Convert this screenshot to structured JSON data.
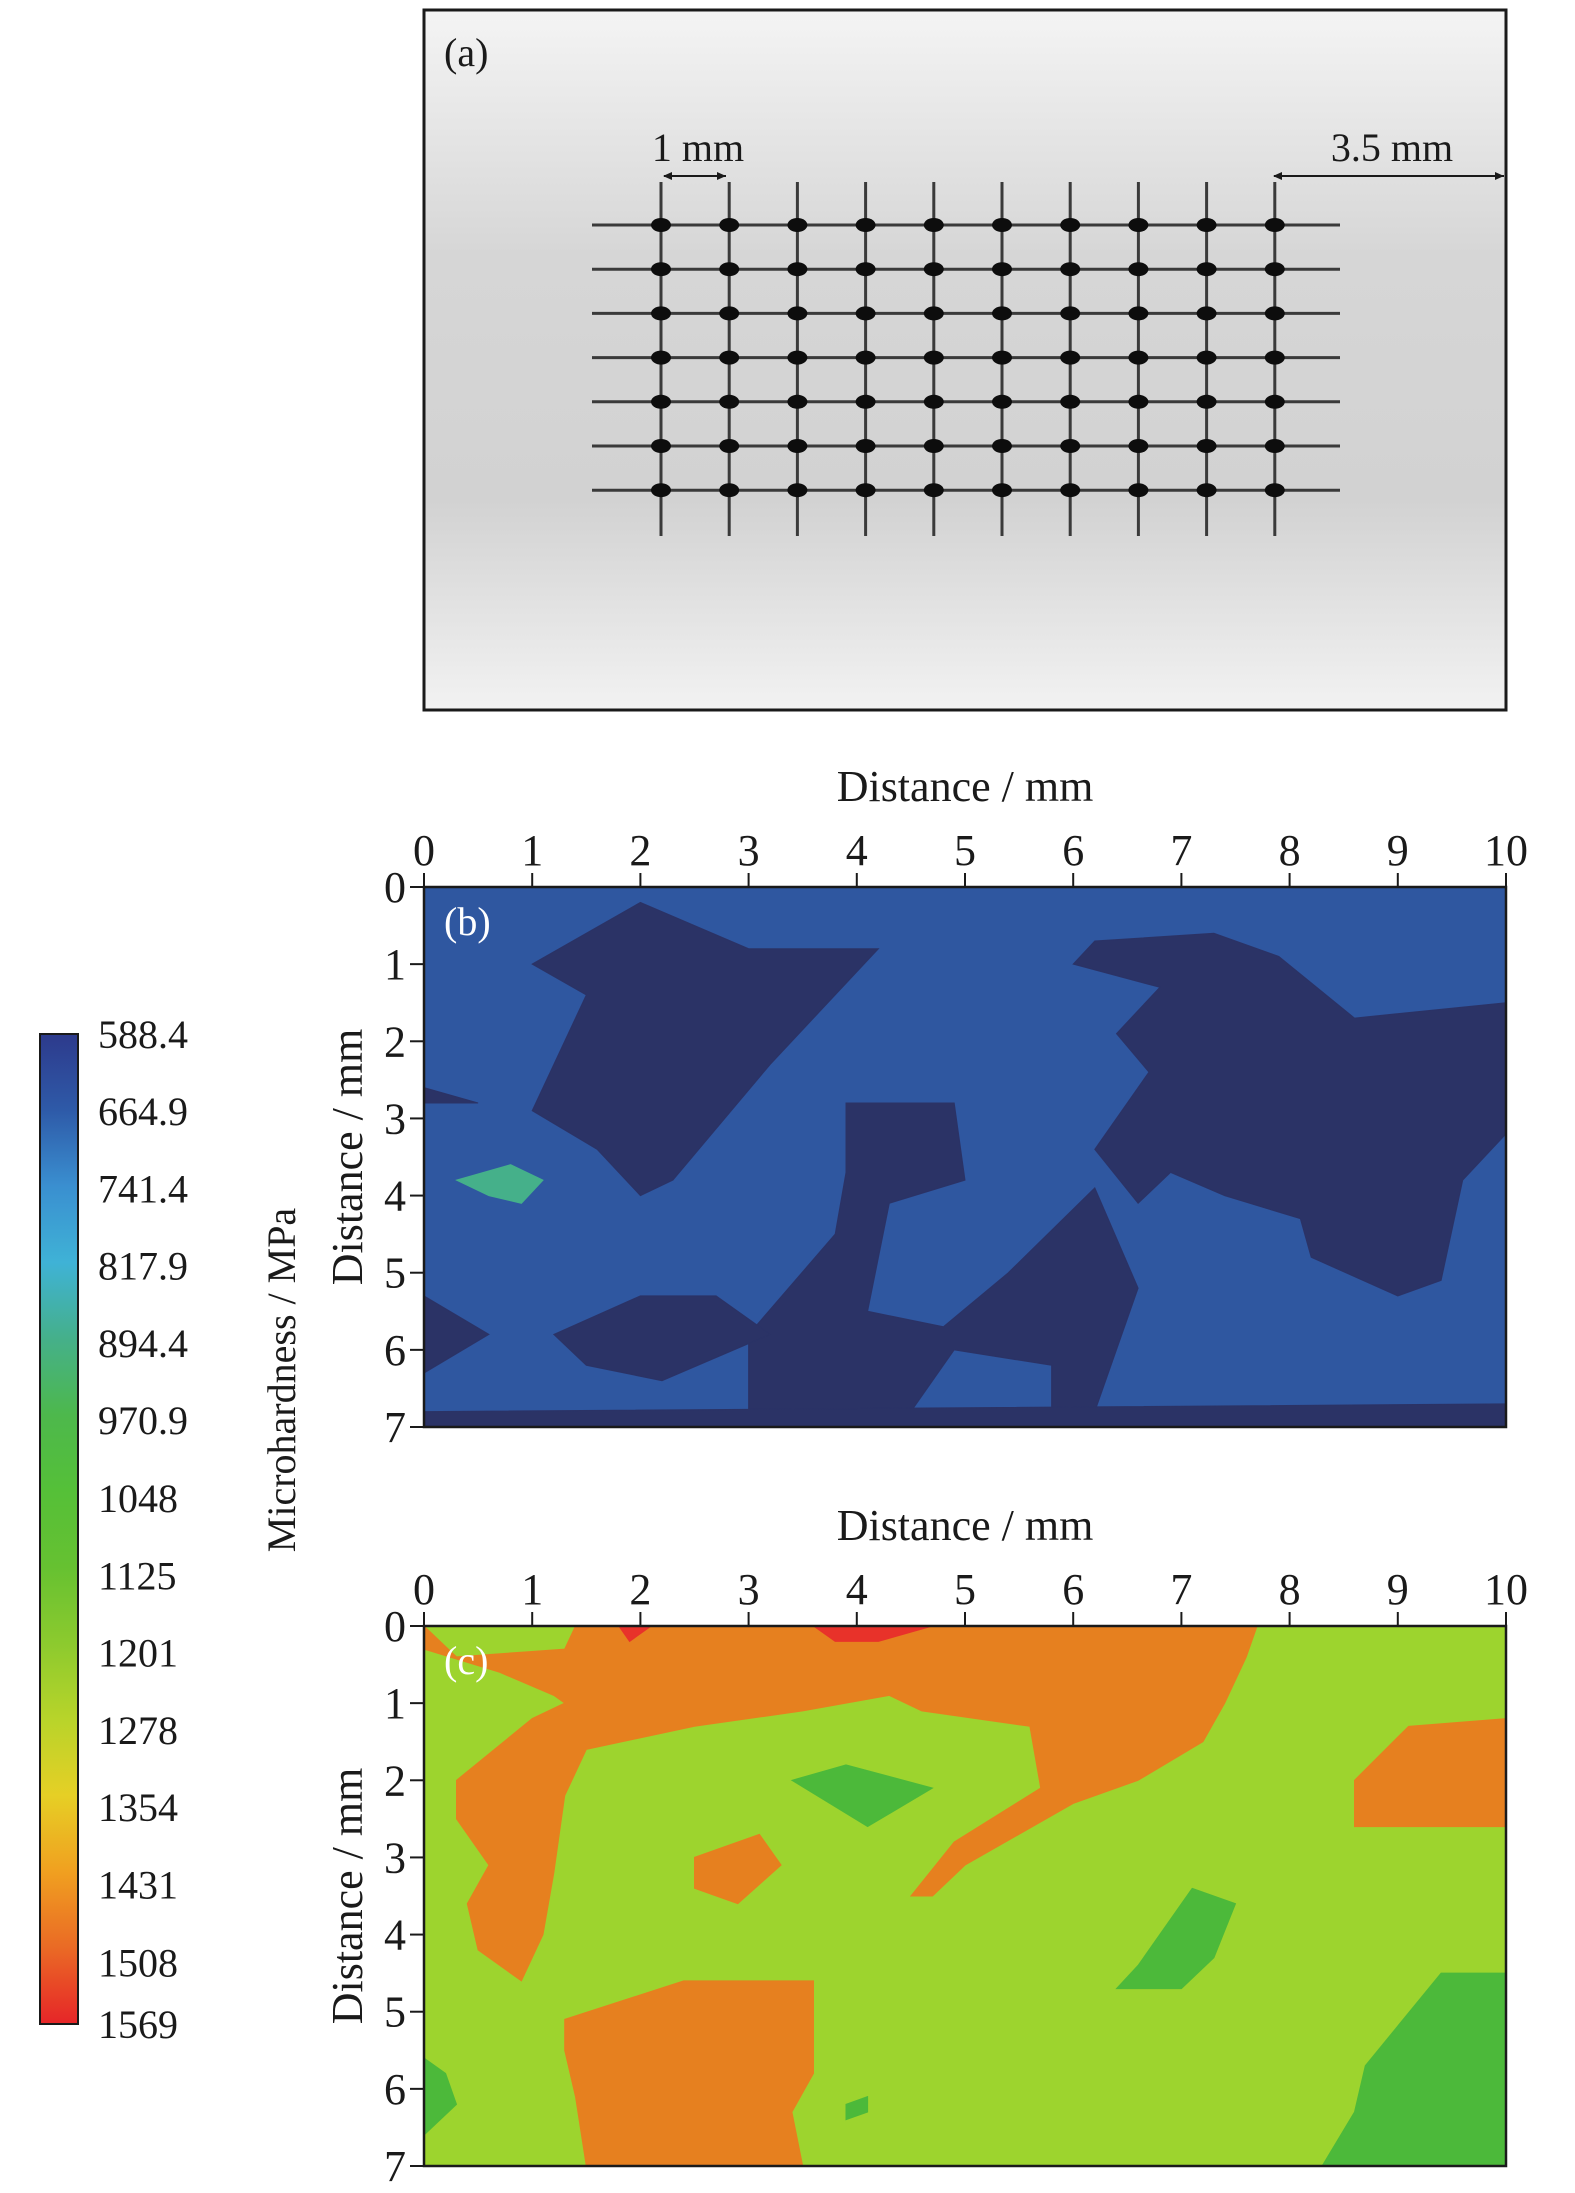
{
  "panel_a": {
    "label": "(a)",
    "spacing_label": "1 mm",
    "edge_label": "3.5 mm",
    "grid_columns": 10,
    "grid_rows": 7
  },
  "colorbar": {
    "title": "Microhardness / MPa",
    "ticks": [
      "588.4",
      "664.9",
      "741.4",
      "817.9",
      "894.4",
      "970.9",
      "1048",
      "1125",
      "1201",
      "1278",
      "1354",
      "1431",
      "1508",
      "1569"
    ],
    "colors": [
      "#2d3a8c",
      "#2e5aa8",
      "#3a8fd0",
      "#3fb2d6",
      "#45b08a",
      "#4db84c",
      "#55c038",
      "#66c131",
      "#8cca2e",
      "#b8d42a",
      "#e6cf25",
      "#f0a020",
      "#ea6a25",
      "#e62528"
    ]
  },
  "chart_data": [
    {
      "type": "heatmap",
      "panel_label": "(b)",
      "xlabel": "Distance / mm",
      "ylabel": "Distance / mm",
      "x_ticks": [
        "0",
        "1",
        "2",
        "3",
        "4",
        "5",
        "6",
        "7",
        "8",
        "9",
        "10"
      ],
      "y_ticks": [
        "0",
        "1",
        "2",
        "3",
        "4",
        "5",
        "6",
        "7"
      ],
      "xlim": [
        0,
        10
      ],
      "ylim": [
        0,
        7
      ],
      "background_color": "#2f57a0",
      "regions": [
        {
          "value_range": [
            588.4,
            664.9
          ],
          "color": "#2b3366",
          "points": [
            [
              1,
              1
            ],
            [
              2,
              0.2
            ],
            [
              3,
              0.8
            ],
            [
              4.2,
              0.8
            ],
            [
              3.2,
              2.3
            ],
            [
              2.3,
              3.8
            ],
            [
              2,
              4
            ],
            [
              1.6,
              3.4
            ],
            [
              1,
              2.9
            ],
            [
              1.5,
              1.4
            ]
          ]
        },
        {
          "value_range": [
            588.4,
            664.9
          ],
          "color": "#2b3366",
          "points": [
            [
              6,
              1
            ],
            [
              6.2,
              0.7
            ],
            [
              7.3,
              0.6
            ],
            [
              7.9,
              0.9
            ],
            [
              8.6,
              1.7
            ],
            [
              10,
              1.5
            ],
            [
              10,
              3.2
            ],
            [
              9.6,
              3.8
            ],
            [
              9.4,
              5.1
            ],
            [
              9,
              5.3
            ],
            [
              8.2,
              4.8
            ],
            [
              8.1,
              4.3
            ],
            [
              7.4,
              4
            ],
            [
              6.9,
              3.7
            ],
            [
              6.6,
              4.1
            ],
            [
              6.2,
              3.4
            ],
            [
              6.7,
              2.4
            ],
            [
              6.4,
              1.9
            ],
            [
              6.8,
              1.3
            ]
          ]
        },
        {
          "value_range": [
            588.4,
            664.9
          ],
          "color": "#2b3366",
          "points": [
            [
              3.9,
              2.8
            ],
            [
              4.9,
              2.8
            ],
            [
              5,
              3.8
            ],
            [
              4.3,
              4.1
            ],
            [
              4.1,
              5.5
            ],
            [
              4.8,
              5.7
            ],
            [
              5.4,
              5
            ],
            [
              6.2,
              3.9
            ],
            [
              6.6,
              5.2
            ],
            [
              6.2,
              6.8
            ],
            [
              5.8,
              6.9
            ],
            [
              5.8,
              6.2
            ],
            [
              4.9,
              6
            ],
            [
              4.5,
              6.8
            ],
            [
              3,
              6.8
            ],
            [
              3,
              5.8
            ],
            [
              3.8,
              4.5
            ],
            [
              3.9,
              3.7
            ]
          ]
        },
        {
          "value_range": [
            588.4,
            664.9
          ],
          "color": "#2b3366",
          "points": [
            [
              1.2,
              5.8
            ],
            [
              2,
              5.3
            ],
            [
              2.7,
              5.3
            ],
            [
              3.2,
              5.8
            ],
            [
              2.2,
              6.4
            ],
            [
              1.5,
              6.2
            ]
          ]
        },
        {
          "value_range": [
            588.4,
            664.9
          ],
          "color": "#2b3366",
          "points": [
            [
              0,
              5.3
            ],
            [
              0.6,
              5.8
            ],
            [
              0,
              6.3
            ]
          ]
        },
        {
          "value_range": [
            588.4,
            664.9
          ],
          "color": "#2b3366",
          "points": [
            [
              0,
              2.6
            ],
            [
              0.5,
              2.8
            ],
            [
              0,
              2.8
            ]
          ]
        },
        {
          "value_range": [
            588.4,
            664.9
          ],
          "color": "#2b3366",
          "points": [
            [
              0,
              6.8
            ],
            [
              10,
              6.7
            ],
            [
              10,
              7
            ],
            [
              0,
              7
            ]
          ]
        },
        {
          "value_range": [
            894.4,
            970.9
          ],
          "color": "#45b08a",
          "points": [
            [
              0.3,
              3.8
            ],
            [
              0.8,
              3.6
            ],
            [
              1.1,
              3.8
            ],
            [
              0.9,
              4.1
            ],
            [
              0.6,
              4
            ]
          ]
        }
      ]
    },
    {
      "type": "heatmap",
      "panel_label": "(c)",
      "xlabel": "Distance / mm",
      "ylabel": "Distance / mm",
      "x_ticks": [
        "0",
        "1",
        "2",
        "3",
        "4",
        "5",
        "6",
        "7",
        "8",
        "9",
        "10"
      ],
      "y_ticks": [
        "0",
        "1",
        "2",
        "3",
        "4",
        "5",
        "6",
        "7"
      ],
      "xlim": [
        0,
        10
      ],
      "ylim": [
        0,
        7
      ],
      "background_color": "#9dd42e",
      "regions": [
        {
          "value_range": [
            1354,
            1431
          ],
          "color": "#e6801f",
          "points": [
            [
              0,
              0
            ],
            [
              0.3,
              0.4
            ],
            [
              1.3,
              0.3
            ],
            [
              1.4,
              0
            ],
            [
              7.7,
              0
            ],
            [
              7.6,
              0.4
            ],
            [
              7.4,
              1
            ],
            [
              7.2,
              1.5
            ],
            [
              6.6,
              2
            ],
            [
              6,
              2.3
            ],
            [
              5,
              3.1
            ],
            [
              4.7,
              3.5
            ],
            [
              4.5,
              3.5
            ],
            [
              4.9,
              2.8
            ],
            [
              5.7,
              2.1
            ],
            [
              5.6,
              1.3
            ],
            [
              4.6,
              1.1
            ],
            [
              4.3,
              0.9
            ],
            [
              3.5,
              1.1
            ],
            [
              2.5,
              1.3
            ],
            [
              1.5,
              1.6
            ],
            [
              1.3,
              2.2
            ],
            [
              1.2,
              3.2
            ],
            [
              1.1,
              4
            ],
            [
              0.9,
              4.6
            ],
            [
              0.5,
              4.2
            ],
            [
              0.4,
              3.6
            ],
            [
              0.6,
              3.1
            ],
            [
              0.3,
              2.5
            ],
            [
              0.3,
              2
            ],
            [
              1,
              1.2
            ],
            [
              1.3,
              1
            ],
            [
              1.2,
              0.9
            ],
            [
              0.7,
              0.6
            ],
            [
              0,
              0.3
            ]
          ]
        },
        {
          "value_range": [
            1354,
            1431
          ],
          "color": "#e6801f",
          "points": [
            [
              2.5,
              3
            ],
            [
              3.1,
              2.7
            ],
            [
              3.3,
              3.1
            ],
            [
              2.9,
              3.6
            ],
            [
              2.5,
              3.4
            ]
          ]
        },
        {
          "value_range": [
            1354,
            1431
          ],
          "color": "#e6801f",
          "points": [
            [
              1.3,
              5.1
            ],
            [
              2.4,
              4.6
            ],
            [
              3.6,
              4.6
            ],
            [
              3.6,
              5.8
            ],
            [
              3.4,
              6.3
            ],
            [
              3.5,
              7
            ],
            [
              1.5,
              7
            ],
            [
              1.4,
              6.1
            ],
            [
              1.3,
              5.5
            ]
          ]
        },
        {
          "value_range": [
            1354,
            1431
          ],
          "color": "#e6801f",
          "points": [
            [
              8.6,
              2
            ],
            [
              9.1,
              1.3
            ],
            [
              10,
              1.2
            ],
            [
              10,
              2.6
            ],
            [
              8.6,
              2.6
            ]
          ]
        },
        {
          "value_range": [
            1431,
            1569
          ],
          "color": "#e8322a",
          "points": [
            [
              1.8,
              0
            ],
            [
              2.1,
              0
            ],
            [
              1.9,
              0.2
            ]
          ]
        },
        {
          "value_range": [
            1431,
            1569
          ],
          "color": "#e8322a",
          "points": [
            [
              3.6,
              0
            ],
            [
              4.7,
              0
            ],
            [
              4.2,
              0.2
            ],
            [
              3.8,
              0.2
            ]
          ]
        },
        {
          "value_range": [
            1125,
            1201
          ],
          "color": "#4cb93a",
          "points": [
            [
              3.4,
              2
            ],
            [
              3.9,
              1.8
            ],
            [
              4.7,
              2.1
            ],
            [
              4.1,
              2.6
            ]
          ]
        },
        {
          "value_range": [
            1125,
            1201
          ],
          "color": "#4cb93a",
          "points": [
            [
              6.4,
              4.7
            ],
            [
              6.6,
              4.4
            ],
            [
              7.1,
              3.4
            ],
            [
              7.5,
              3.6
            ],
            [
              7.3,
              4.3
            ],
            [
              7,
              4.7
            ]
          ]
        },
        {
          "value_range": [
            1125,
            1201
          ],
          "color": "#4cb93a",
          "points": [
            [
              8.6,
              6.3
            ],
            [
              8.7,
              5.7
            ],
            [
              9.4,
              4.5
            ],
            [
              10,
              4.5
            ],
            [
              10,
              7
            ],
            [
              8.3,
              7
            ]
          ]
        },
        {
          "value_range": [
            1125,
            1201
          ],
          "color": "#4cb93a",
          "points": [
            [
              0,
              5.6
            ],
            [
              0.2,
              5.8
            ],
            [
              0.3,
              6.2
            ],
            [
              0,
              6.6
            ]
          ]
        },
        {
          "value_range": [
            1125,
            1201
          ],
          "color": "#4cb93a",
          "points": [
            [
              3.9,
              6.2
            ],
            [
              4.1,
              6.1
            ],
            [
              4.1,
              6.3
            ],
            [
              3.9,
              6.4
            ]
          ]
        }
      ]
    }
  ]
}
